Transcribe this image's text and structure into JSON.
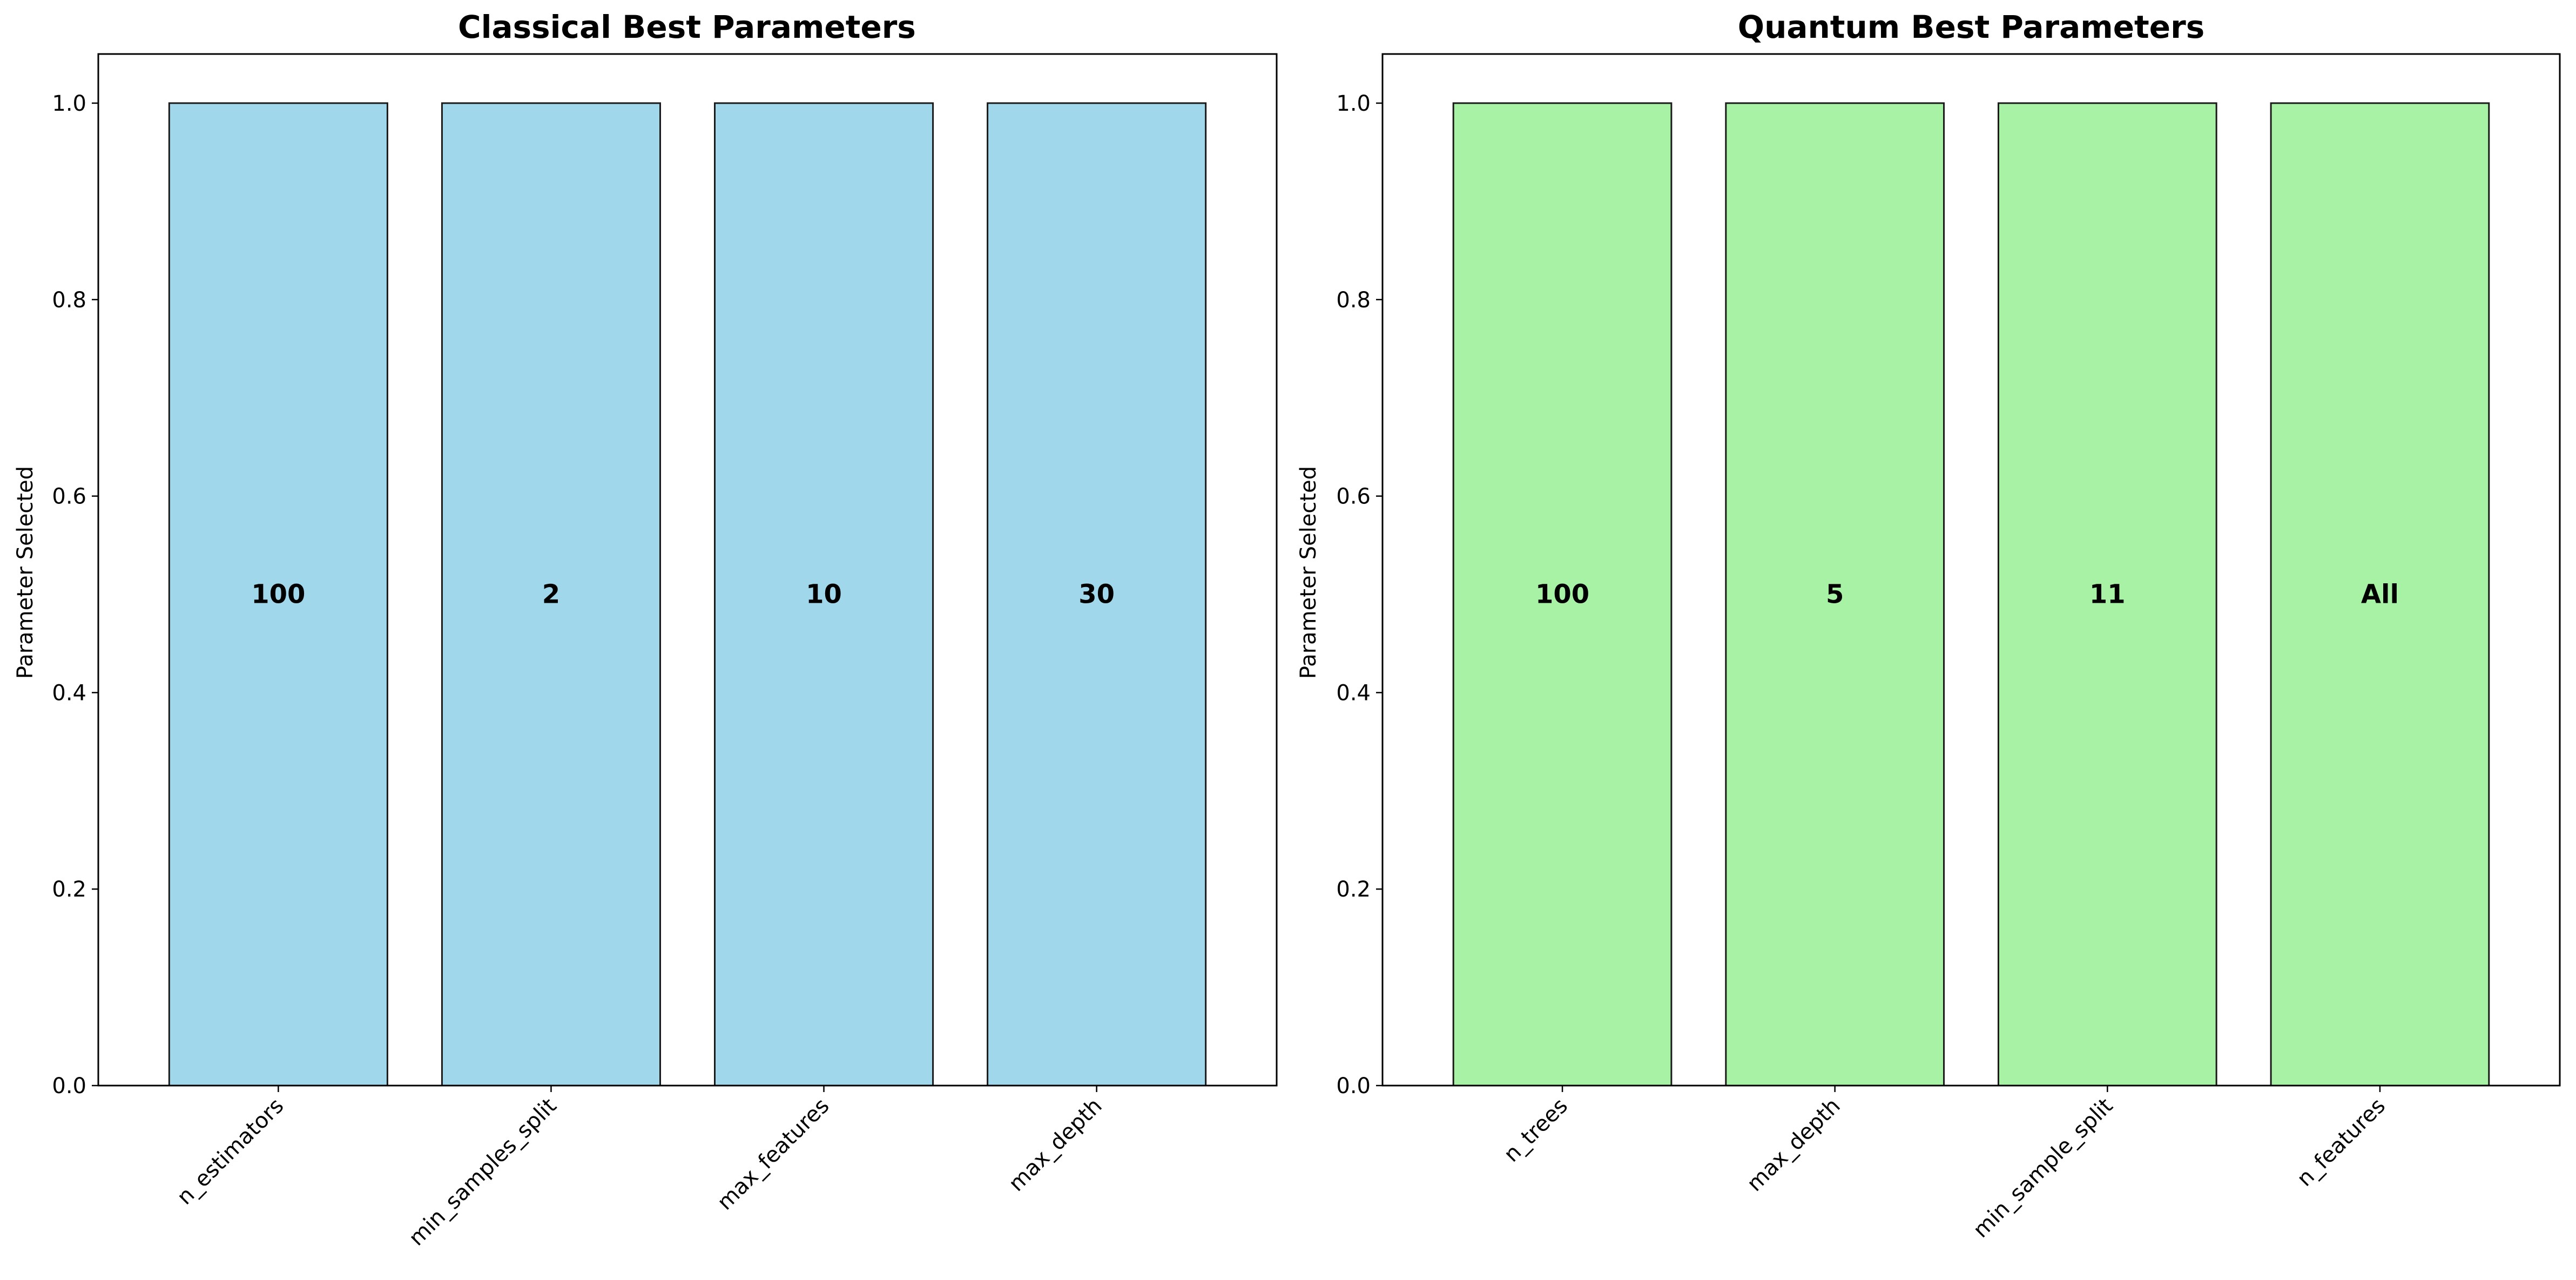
{
  "chart_data": [
    {
      "type": "bar",
      "title": "Classical Best Parameters",
      "xlabel": "",
      "ylabel": "Parameter Selected",
      "categories": [
        "n_estimators",
        "min_samples_split",
        "max_features",
        "max_depth"
      ],
      "values": [
        1,
        1,
        1,
        1
      ],
      "bar_labels": [
        "100",
        "2",
        "10",
        "30"
      ],
      "ylim": [
        0,
        1.05
      ],
      "yticks": [
        0.0,
        0.2,
        0.4,
        0.6,
        0.8,
        1.0
      ],
      "ytick_labels": [
        "0.0",
        "0.2",
        "0.4",
        "0.6",
        "0.8",
        "1.0"
      ],
      "bar_color": "#a1d7eb",
      "edge_color": "#1a1a1a",
      "grid": false
    },
    {
      "type": "bar",
      "title": "Quantum Best Parameters",
      "xlabel": "",
      "ylabel": "Parameter Selected",
      "categories": [
        "n_trees",
        "max_depth",
        "min_sample_split",
        "n_features"
      ],
      "values": [
        1,
        1,
        1,
        1
      ],
      "bar_labels": [
        "100",
        "5",
        "11",
        "All"
      ],
      "ylim": [
        0,
        1.05
      ],
      "yticks": [
        0.0,
        0.2,
        0.4,
        0.6,
        0.8,
        1.0
      ],
      "ytick_labels": [
        "0.0",
        "0.2",
        "0.4",
        "0.6",
        "0.8",
        "1.0"
      ],
      "bar_color": "#a8f2a5",
      "edge_color": "#1a1a1a",
      "grid": false
    }
  ]
}
